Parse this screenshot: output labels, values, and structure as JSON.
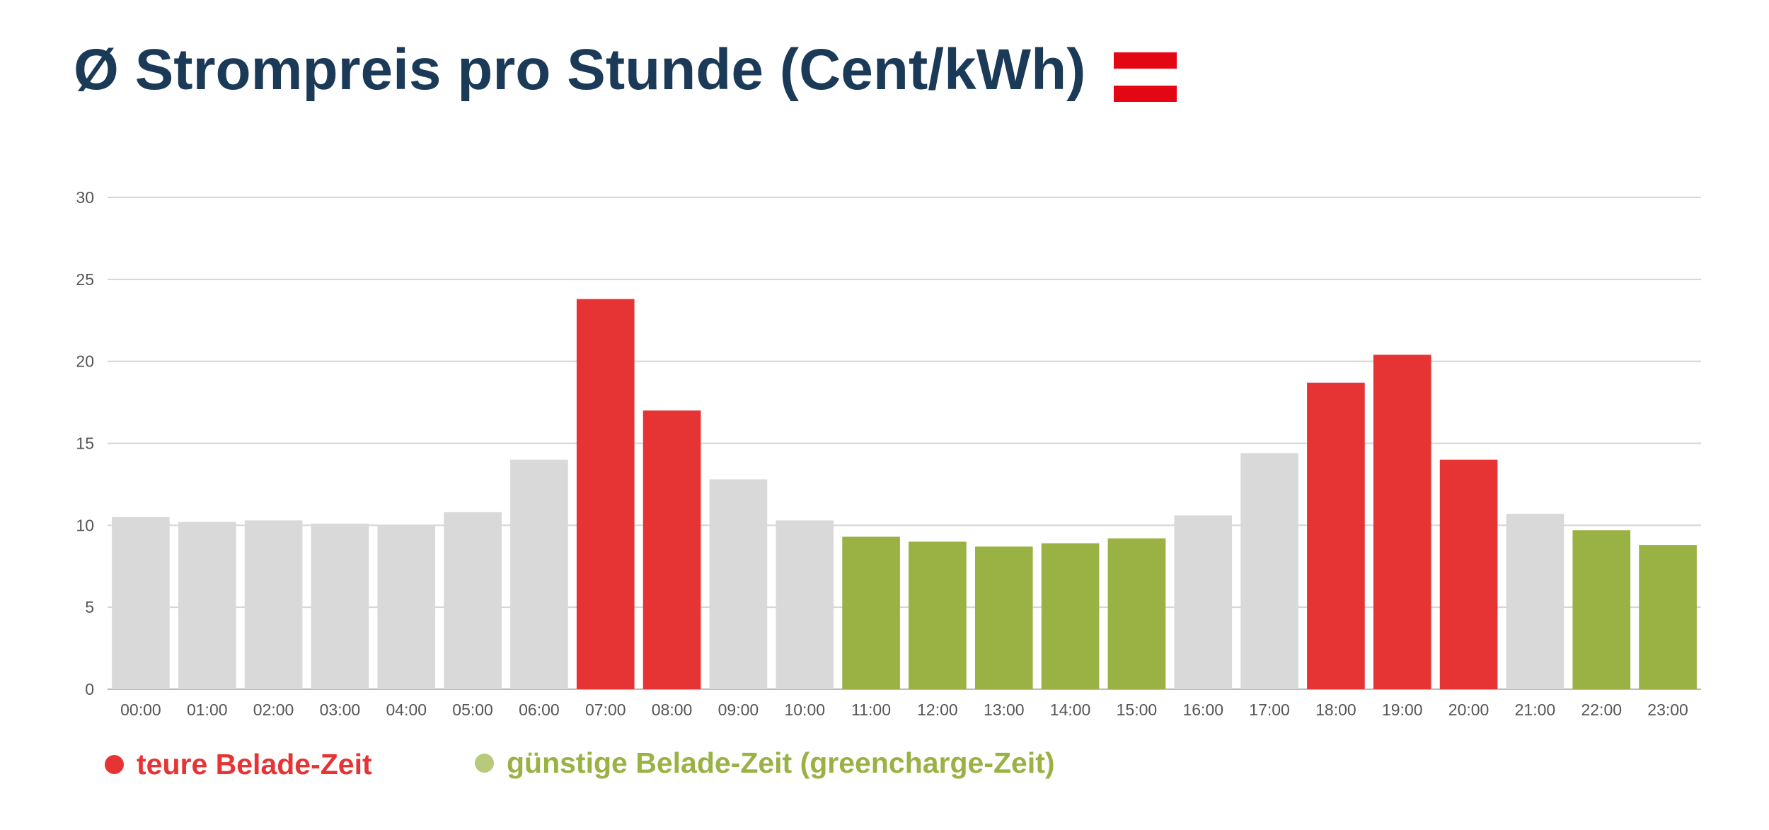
{
  "title": "Ø Strompreis pro Stunde (Cent/kWh)",
  "flag": {
    "name": "austria-flag",
    "colors": [
      "#e30613",
      "#ffffff",
      "#e30613"
    ]
  },
  "colors": {
    "expensive": "#e63334",
    "cheap": "#9ab144",
    "neutral": "#d9d9d9",
    "grid": "#d5d5d5",
    "title": "#1b3a57",
    "legend_cheap_dot": "#b7c97a"
  },
  "legend": [
    {
      "label": "teure Belade-Zeit",
      "color": "#e63334"
    },
    {
      "label": "günstige Belade-Zeit (greencharge-Zeit)",
      "color": "#9ab144"
    }
  ],
  "chart_data": {
    "type": "bar",
    "title": "Ø Strompreis pro Stunde (Cent/kWh)",
    "xlabel": "",
    "ylabel": "",
    "ylim": [
      0,
      30
    ],
    "yticks": [
      0,
      5,
      10,
      15,
      20,
      25,
      30
    ],
    "grid": true,
    "legend_position": "bottom-left",
    "categories": [
      "00:00",
      "01:00",
      "02:00",
      "03:00",
      "04:00",
      "05:00",
      "06:00",
      "07:00",
      "08:00",
      "09:00",
      "10:00",
      "11:00",
      "12:00",
      "13:00",
      "14:00",
      "15:00",
      "16:00",
      "17:00",
      "18:00",
      "19:00",
      "20:00",
      "21:00",
      "22:00",
      "23:00"
    ],
    "values": [
      10.5,
      10.2,
      10.3,
      10.1,
      10.0,
      10.8,
      14.0,
      23.8,
      17.0,
      12.8,
      10.3,
      9.3,
      9.0,
      8.7,
      8.9,
      9.2,
      10.6,
      14.4,
      18.7,
      20.4,
      14.0,
      10.7,
      9.7,
      8.8
    ],
    "bar_class": [
      "neutral",
      "neutral",
      "neutral",
      "neutral",
      "neutral",
      "neutral",
      "neutral",
      "expensive",
      "expensive",
      "neutral",
      "neutral",
      "cheap",
      "cheap",
      "cheap",
      "cheap",
      "cheap",
      "neutral",
      "neutral",
      "expensive",
      "expensive",
      "expensive",
      "neutral",
      "cheap",
      "cheap"
    ]
  }
}
